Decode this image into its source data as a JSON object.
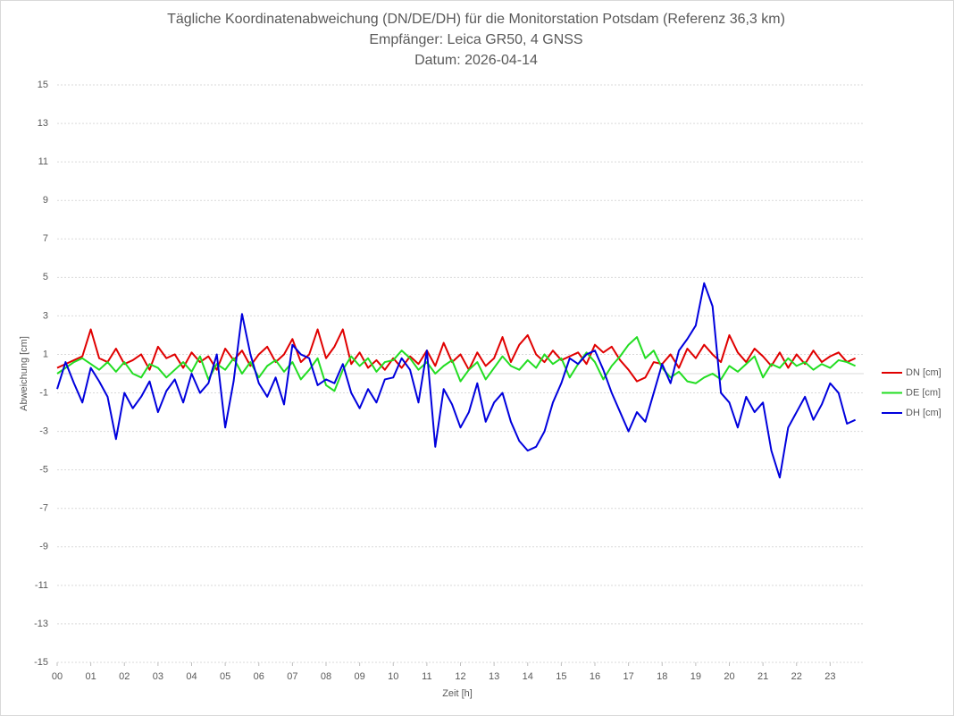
{
  "chart_data": {
    "type": "line",
    "title": [
      "Tägliche Koordinatenabweichung (DN/DE/DH) für die Monitorstation Potsdam (Referenz 36,3 km)",
      "Empfänger: Leica GR50, 4 GNSS",
      "Datum: 2026-04-14"
    ],
    "x_label": "Zeit [h]",
    "y_label": "Abweichung [cm]",
    "xlim": [
      0,
      24
    ],
    "xticks": [
      {
        "value": 0,
        "label": "00"
      },
      {
        "value": 1,
        "label": "01"
      },
      {
        "value": 2,
        "label": "02"
      },
      {
        "value": 3,
        "label": "03"
      },
      {
        "value": 4,
        "label": "04"
      },
      {
        "value": 5,
        "label": "05"
      },
      {
        "value": 6,
        "label": "06"
      },
      {
        "value": 7,
        "label": "07"
      },
      {
        "value": 8,
        "label": "08"
      },
      {
        "value": 9,
        "label": "09"
      },
      {
        "value": 10,
        "label": "10"
      },
      {
        "value": 11,
        "label": "11"
      },
      {
        "value": 12,
        "label": "12"
      },
      {
        "value": 13,
        "label": "13"
      },
      {
        "value": 14,
        "label": "14"
      },
      {
        "value": 15,
        "label": "15"
      },
      {
        "value": 16,
        "label": "16"
      },
      {
        "value": 17,
        "label": "17"
      },
      {
        "value": 18,
        "label": "18"
      },
      {
        "value": 19,
        "label": "19"
      },
      {
        "value": 20,
        "label": "20"
      },
      {
        "value": 21,
        "label": "21"
      },
      {
        "value": 22,
        "label": "22"
      },
      {
        "value": 23,
        "label": "23"
      }
    ],
    "ylim": [
      -15,
      15
    ],
    "yticks": [
      15,
      13,
      11,
      9,
      7,
      5,
      3,
      1,
      -1,
      -3,
      -5,
      -7,
      -9,
      -11,
      -13,
      -15
    ],
    "grid": true,
    "legend": "right",
    "x": [
      0,
      0.25,
      0.5,
      0.75,
      1,
      1.25,
      1.5,
      1.75,
      2,
      2.25,
      2.5,
      2.75,
      3,
      3.25,
      3.5,
      3.75,
      4,
      4.25,
      4.5,
      4.75,
      5,
      5.25,
      5.5,
      5.75,
      6,
      6.25,
      6.5,
      6.75,
      7,
      7.25,
      7.5,
      7.75,
      8,
      8.25,
      8.5,
      8.75,
      9,
      9.25,
      9.5,
      9.75,
      10,
      10.25,
      10.5,
      10.75,
      11,
      11.25,
      11.5,
      11.75,
      12,
      12.25,
      12.5,
      12.75,
      13,
      13.25,
      13.5,
      13.75,
      14,
      14.25,
      14.5,
      14.75,
      15,
      15.25,
      15.5,
      15.75,
      16,
      16.25,
      16.5,
      16.75,
      17,
      17.25,
      17.5,
      17.75,
      18,
      18.25,
      18.5,
      18.75,
      19,
      19.25,
      19.5,
      19.75,
      20,
      20.25,
      20.5,
      20.75,
      21,
      21.25,
      21.5,
      21.75,
      22,
      22.25,
      22.5,
      22.75,
      23,
      23.25,
      23.5,
      23.75
    ],
    "series": [
      {
        "name": "DN [cm]",
        "color": "#e00000",
        "values": [
          0.3,
          0.5,
          0.7,
          0.9,
          2.3,
          0.8,
          0.6,
          1.3,
          0.5,
          0.7,
          1.0,
          0.2,
          1.4,
          0.8,
          1.0,
          0.3,
          1.1,
          0.6,
          0.9,
          0.2,
          1.3,
          0.7,
          1.2,
          0.4,
          1.0,
          1.4,
          0.6,
          1.0,
          1.8,
          0.6,
          1.0,
          2.3,
          0.8,
          1.4,
          2.3,
          0.5,
          1.1,
          0.3,
          0.7,
          0.2,
          0.8,
          0.3,
          0.9,
          0.5,
          1.2,
          0.4,
          1.6,
          0.6,
          1.0,
          0.2,
          1.1,
          0.4,
          0.8,
          1.9,
          0.6,
          1.5,
          2.0,
          1.0,
          0.6,
          1.2,
          0.7,
          0.9,
          1.1,
          0.5,
          1.5,
          1.1,
          1.4,
          0.7,
          0.2,
          -0.4,
          -0.2,
          0.6,
          0.5,
          1.0,
          0.3,
          1.3,
          0.8,
          1.5,
          1.0,
          0.6,
          2.0,
          1.1,
          0.6,
          1.3,
          0.9,
          0.4,
          1.1,
          0.3,
          1.0,
          0.5,
          1.2,
          0.6,
          0.9,
          1.1,
          0.6,
          0.8
        ]
      },
      {
        "name": "DE [cm]",
        "color": "#22dd22",
        "values": [
          0.0,
          0.3,
          0.6,
          0.8,
          0.5,
          0.2,
          0.6,
          0.1,
          0.6,
          0.0,
          -0.2,
          0.5,
          0.3,
          -0.2,
          0.2,
          0.6,
          0.1,
          0.9,
          -0.3,
          0.5,
          0.2,
          0.8,
          0.0,
          0.6,
          -0.2,
          0.4,
          0.7,
          0.1,
          0.6,
          -0.3,
          0.2,
          0.8,
          -0.6,
          -0.9,
          0.2,
          0.9,
          0.4,
          0.8,
          0.1,
          0.6,
          0.7,
          1.2,
          0.8,
          0.2,
          0.6,
          0.0,
          0.4,
          0.7,
          -0.4,
          0.2,
          0.6,
          -0.3,
          0.3,
          0.9,
          0.4,
          0.2,
          0.7,
          0.3,
          1.0,
          0.5,
          0.8,
          -0.2,
          0.5,
          1.1,
          0.6,
          -0.3,
          0.4,
          0.9,
          1.5,
          1.9,
          0.8,
          1.2,
          0.3,
          -0.2,
          0.1,
          -0.4,
          -0.5,
          -0.2,
          0.0,
          -0.3,
          0.4,
          0.1,
          0.5,
          0.9,
          -0.2,
          0.5,
          0.3,
          0.8,
          0.4,
          0.6,
          0.2,
          0.5,
          0.3,
          0.7,
          0.6,
          0.4
        ]
      },
      {
        "name": "DH [cm]",
        "color": "#0000dd",
        "values": [
          -0.8,
          0.6,
          -0.5,
          -1.5,
          0.3,
          -0.4,
          -1.2,
          -3.4,
          -1.0,
          -1.8,
          -1.2,
          -0.4,
          -2.0,
          -0.9,
          -0.3,
          -1.5,
          0.0,
          -1.0,
          -0.5,
          1.0,
          -2.8,
          -0.4,
          3.1,
          1.0,
          -0.5,
          -1.2,
          -0.2,
          -1.6,
          1.5,
          1.0,
          0.8,
          -0.6,
          -0.3,
          -0.5,
          0.5,
          -1.0,
          -1.8,
          -0.8,
          -1.5,
          -0.3,
          -0.2,
          0.8,
          0.2,
          -1.5,
          1.2,
          -3.8,
          -0.8,
          -1.6,
          -2.8,
          -2.0,
          -0.5,
          -2.5,
          -1.5,
          -1.0,
          -2.5,
          -3.5,
          -4.0,
          -3.8,
          -3.0,
          -1.5,
          -0.5,
          0.8,
          0.5,
          1.0,
          1.2,
          0.2,
          -1.0,
          -2.0,
          -3.0,
          -2.0,
          -2.5,
          -1.0,
          0.5,
          -0.5,
          1.2,
          1.8,
          2.5,
          4.7,
          3.5,
          -1.0,
          -1.5,
          -2.8,
          -1.2,
          -2.0,
          -1.5,
          -4.0,
          -5.4,
          -2.8,
          -2.0,
          -1.2,
          -2.4,
          -1.6,
          -0.5,
          -1.0,
          -2.6,
          -2.4
        ]
      }
    ]
  }
}
